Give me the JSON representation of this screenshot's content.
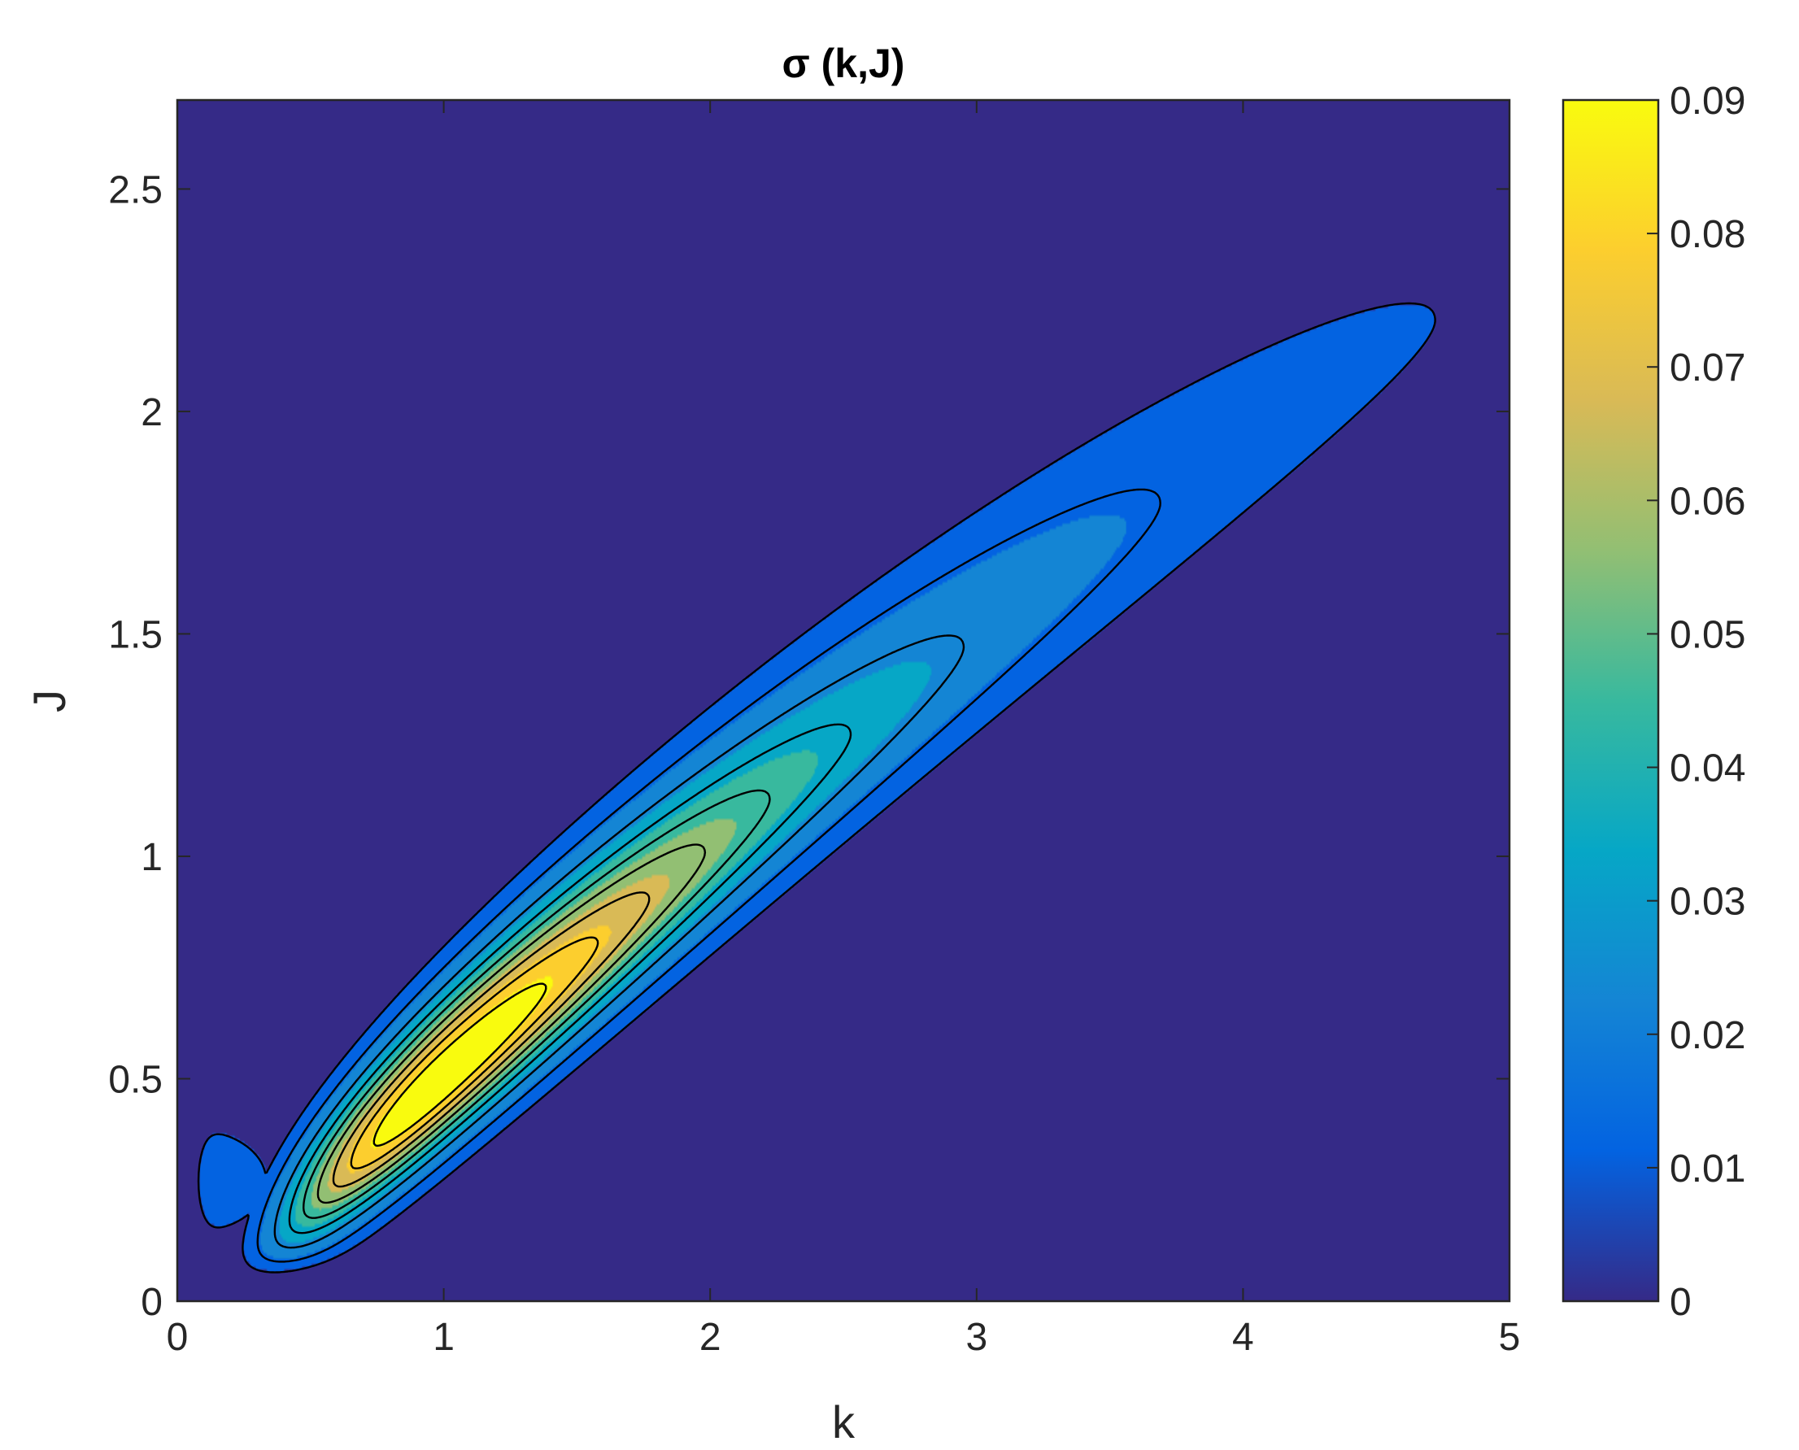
{
  "chart_data": {
    "type": "contour",
    "title": "σ (k,J)",
    "xlabel": "k",
    "ylabel": "J",
    "xlim": [
      0,
      5
    ],
    "ylim": [
      0,
      2.7
    ],
    "x_ticks": [
      "0",
      "1",
      "2",
      "3",
      "4",
      "5"
    ],
    "y_ticks": [
      "0",
      "0.5",
      "1",
      "1.5",
      "2",
      "2.5"
    ],
    "grid": false,
    "colormap": "parula",
    "colorbar": {
      "range": [
        0,
        0.09
      ],
      "ticks": [
        "0",
        "0.01",
        "0.02",
        "0.03",
        "0.04",
        "0.05",
        "0.06",
        "0.07",
        "0.08",
        "0.09"
      ],
      "colors": [
        "#352a87",
        "#0363e1",
        "#1485d4",
        "#06a7c6",
        "#38b99e",
        "#92bf73",
        "#d9ba56",
        "#fcce2e",
        "#f9fb0e"
      ]
    },
    "contour_levels": [
      0.01,
      0.02,
      0.03,
      0.04,
      0.05,
      0.06,
      0.07,
      0.08,
      0.09
    ],
    "ridge": {
      "description_source": "visible filled region",
      "peak": {
        "k": 1.0,
        "J": 0.5,
        "value": 0.09
      },
      "extent_k": [
        0.08,
        4.7
      ],
      "extent_J": [
        0.07,
        2.3
      ]
    }
  }
}
